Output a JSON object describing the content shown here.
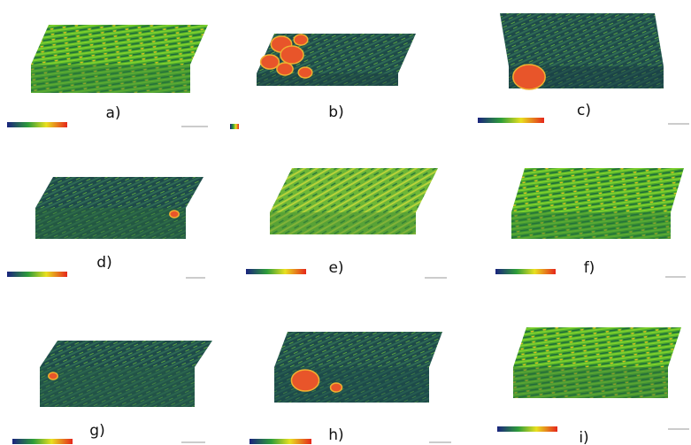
{
  "panels": [
    {
      "label": "a)"
    },
    {
      "label": "b)"
    },
    {
      "label": "c)"
    },
    {
      "label": "d)"
    },
    {
      "label": "e)"
    },
    {
      "label": "f)"
    },
    {
      "label": "g)"
    },
    {
      "label": "h)"
    },
    {
      "label": "i)"
    }
  ]
}
